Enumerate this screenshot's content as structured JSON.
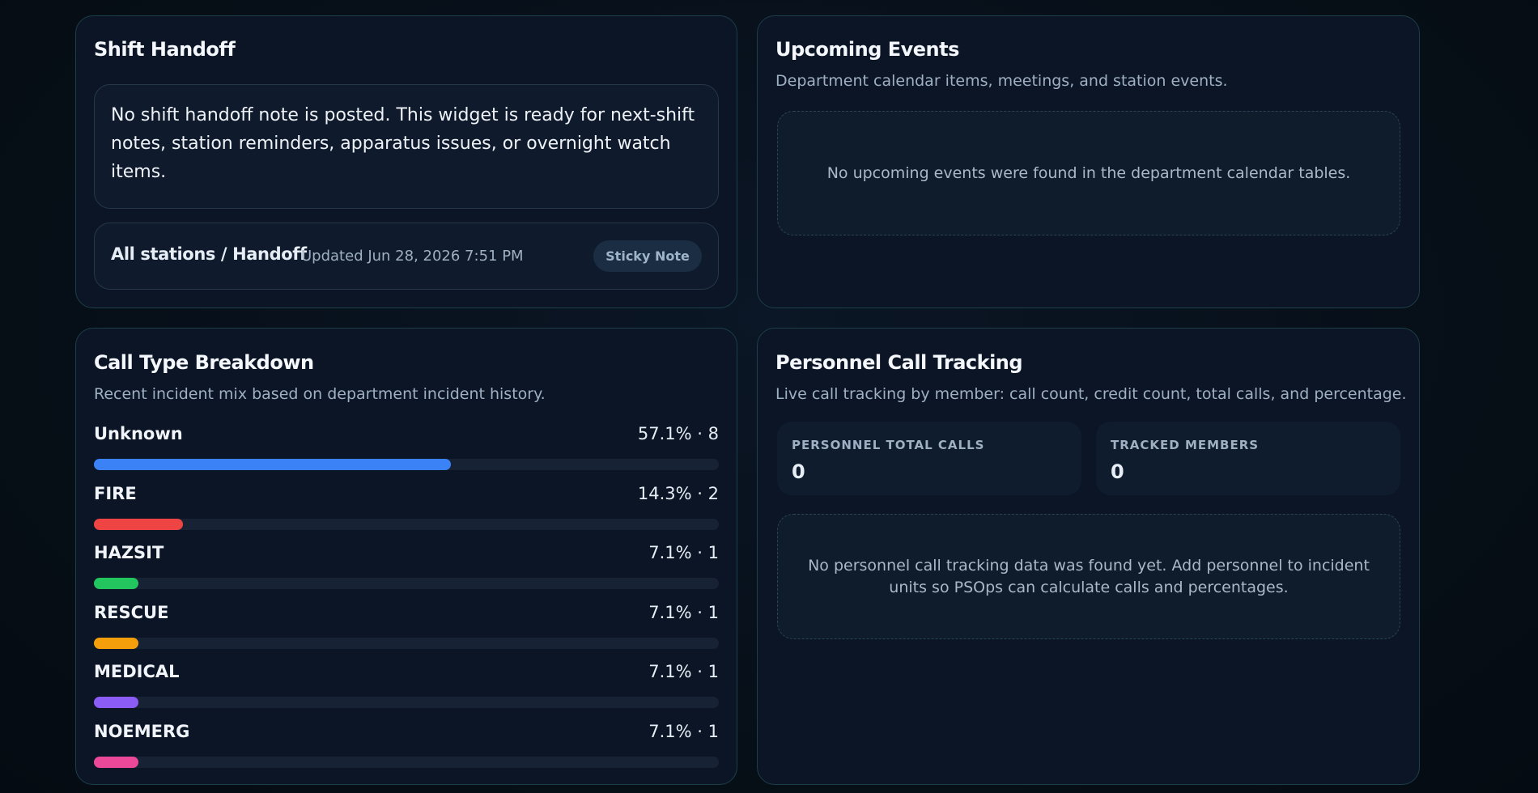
{
  "shift_handoff": {
    "title": "Shift Handoff",
    "note": "No shift handoff note is posted. This widget is ready for next-shift notes, station reminders, apparatus issues, or overnight watch items.",
    "scope": "All stations / Handoff",
    "updated": "Updated Jun 28, 2026 7:51 PM",
    "badge": "Sticky Note"
  },
  "upcoming_events": {
    "title": "Upcoming Events",
    "subtitle": "Department calendar items, meetings, and station events.",
    "empty": "No upcoming events were found in the department calendar tables."
  },
  "call_type_breakdown": {
    "title": "Call Type Breakdown",
    "subtitle": "Recent incident mix based on department incident history.",
    "items": [
      {
        "name": "Unknown",
        "percent": 57.1,
        "label": "57.1% · 8",
        "color": "#3b82f6"
      },
      {
        "name": "FIRE",
        "percent": 14.3,
        "label": "14.3% · 2",
        "color": "#ef4444"
      },
      {
        "name": "HAZSIT",
        "percent": 7.1,
        "label": "7.1% · 1",
        "color": "#22c55e"
      },
      {
        "name": "RESCUE",
        "percent": 7.1,
        "label": "7.1% · 1",
        "color": "#f59e0b"
      },
      {
        "name": "MEDICAL",
        "percent": 7.1,
        "label": "7.1% · 1",
        "color": "#8b5cf6"
      },
      {
        "name": "NOEMERG",
        "percent": 7.1,
        "label": "7.1% · 1",
        "color": "#ec4899"
      }
    ]
  },
  "personnel_call_tracking": {
    "title": "Personnel Call Tracking",
    "subtitle": "Live call tracking by member: call count, credit count, total calls, and percentage.",
    "stats": [
      {
        "label": "PERSONNEL TOTAL CALLS",
        "value": 0
      },
      {
        "label": "TRACKED MEMBERS",
        "value": 0
      }
    ],
    "empty": "No personnel call tracking data was found yet. Add personnel to incident units so PSOps can calculate calls and percentages."
  }
}
